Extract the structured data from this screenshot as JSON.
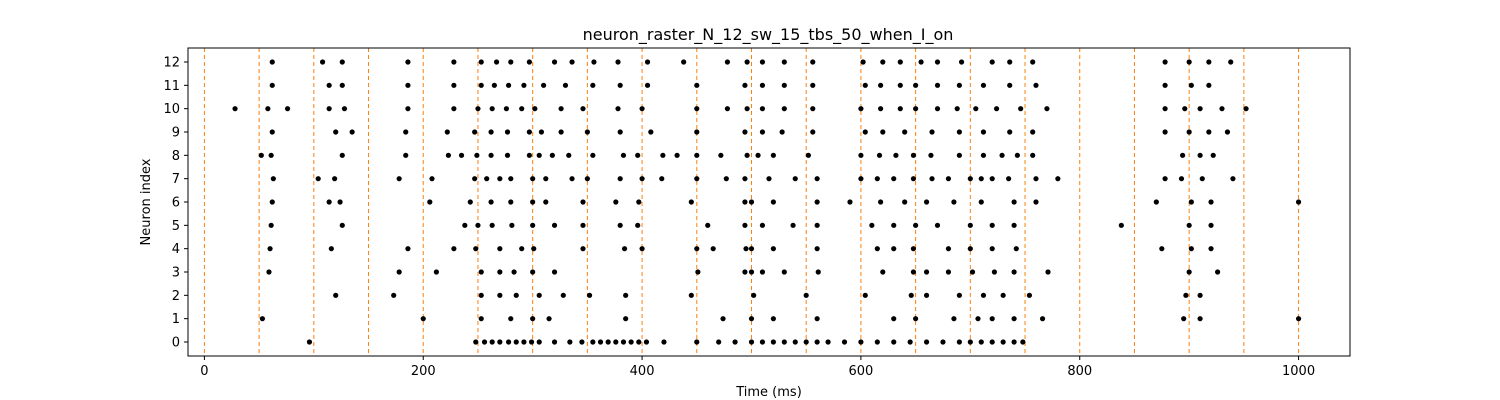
{
  "chart_data": {
    "type": "scatter",
    "title": "neuron_raster_N_12_sw_15_tbs_50_when_I_on",
    "xlabel": "Time (ms)",
    "ylabel": "Neuron index",
    "xlim": [
      -15,
      1047
    ],
    "ylim": [
      -0.6,
      12.6
    ],
    "x_ticks": [
      0,
      200,
      400,
      600,
      800,
      1000
    ],
    "y_ticks": [
      0,
      1,
      2,
      3,
      4,
      5,
      6,
      7,
      8,
      9,
      10,
      11,
      12
    ],
    "grid": false,
    "point_color": "#000000",
    "marker_line_color": "#ff7f0e",
    "marker_lines": [
      0,
      50,
      100,
      150,
      200,
      250,
      300,
      350,
      400,
      450,
      500,
      550,
      600,
      650,
      700,
      750,
      800,
      850,
      900,
      950,
      1000
    ],
    "series": [
      {
        "neuron": 0,
        "times": [
          96,
          248,
          256,
          263,
          270,
          278,
          285,
          292,
          299,
          306,
          320,
          334,
          345,
          355,
          362,
          369,
          376,
          383,
          390,
          397,
          404,
          420,
          450,
          470,
          485,
          500,
          510,
          520,
          530,
          540,
          550,
          560,
          570,
          585,
          600,
          615,
          630,
          645,
          660,
          675,
          690,
          700,
          710,
          720,
          730,
          740,
          748
        ]
      },
      {
        "neuron": 1,
        "times": [
          53,
          200,
          253,
          280,
          300,
          315,
          385,
          474,
          500,
          520,
          560,
          630,
          650,
          685,
          707,
          720,
          740,
          766,
          895,
          910,
          1000
        ]
      },
      {
        "neuron": 2,
        "times": [
          120,
          173,
          253,
          270,
          285,
          306,
          328,
          352,
          385,
          445,
          502,
          550,
          604,
          646,
          660,
          690,
          712,
          730,
          754,
          897,
          910
        ]
      },
      {
        "neuron": 3,
        "times": [
          59,
          178,
          212,
          253,
          270,
          283,
          300,
          320,
          451,
          494,
          500,
          510,
          530,
          561,
          620,
          648,
          660,
          680,
          702,
          722,
          740,
          771,
          900,
          926
        ]
      },
      {
        "neuron": 4,
        "times": [
          60,
          116,
          186,
          228,
          248,
          270,
          290,
          301,
          346,
          384,
          400,
          450,
          465,
          495,
          500,
          520,
          560,
          615,
          630,
          648,
          680,
          700,
          720,
          742,
          875,
          902,
          920
        ]
      },
      {
        "neuron": 5,
        "times": [
          61,
          126,
          238,
          250,
          263,
          281,
          300,
          320,
          346,
          380,
          396,
          460,
          494,
          510,
          538,
          560,
          610,
          630,
          650,
          670,
          700,
          720,
          740,
          838,
          900,
          920
        ]
      },
      {
        "neuron": 6,
        "times": [
          62,
          114,
          124,
          206,
          243,
          262,
          280,
          300,
          312,
          346,
          376,
          397,
          445,
          494,
          500,
          520,
          560,
          590,
          618,
          640,
          660,
          685,
          710,
          740,
          760,
          870,
          902,
          920,
          1000
        ]
      },
      {
        "neuron": 7,
        "times": [
          63,
          104,
          119,
          178,
          208,
          247,
          258,
          270,
          280,
          300,
          312,
          336,
          350,
          380,
          400,
          418,
          450,
          477,
          494,
          516,
          540,
          560,
          600,
          615,
          630,
          648,
          665,
          680,
          700,
          710,
          720,
          735,
          760,
          780,
          878,
          893,
          912,
          940
        ]
      },
      {
        "neuron": 8,
        "times": [
          52,
          61,
          126,
          184,
          223,
          235,
          249,
          262,
          277,
          297,
          306,
          318,
          333,
          355,
          383,
          396,
          419,
          432,
          450,
          472,
          496,
          506,
          520,
          552,
          600,
          617,
          632,
          648,
          664,
          690,
          712,
          729,
          743,
          757,
          894,
          910,
          922
        ]
      },
      {
        "neuron": 9,
        "times": [
          62,
          120,
          135,
          184,
          222,
          247,
          262,
          277,
          297,
          308,
          326,
          350,
          380,
          408,
          450,
          494,
          510,
          528,
          556,
          604,
          620,
          640,
          665,
          690,
          712,
          736,
          757,
          878,
          900,
          918,
          935
        ]
      },
      {
        "neuron": 10,
        "times": [
          28,
          58,
          76,
          114,
          128,
          186,
          228,
          250,
          263,
          276,
          290,
          302,
          326,
          346,
          378,
          400,
          450,
          478,
          496,
          510,
          530,
          556,
          600,
          618,
          636,
          650,
          670,
          688,
          705,
          724,
          746,
          770,
          878,
          896,
          910,
          930,
          952
        ]
      },
      {
        "neuron": 11,
        "times": [
          62,
          114,
          126,
          186,
          228,
          253,
          265,
          278,
          292,
          310,
          330,
          355,
          380,
          405,
          450,
          494,
          510,
          530,
          556,
          604,
          618,
          636,
          650,
          670,
          690,
          712,
          736,
          760,
          878,
          902,
          918
        ]
      },
      {
        "neuron": 12,
        "times": [
          62,
          108,
          126,
          186,
          228,
          253,
          267,
          280,
          297,
          320,
          336,
          356,
          378,
          405,
          438,
          478,
          496,
          510,
          530,
          556,
          602,
          620,
          636,
          655,
          670,
          692,
          720,
          736,
          757,
          878,
          900,
          918,
          938
        ]
      }
    ]
  }
}
